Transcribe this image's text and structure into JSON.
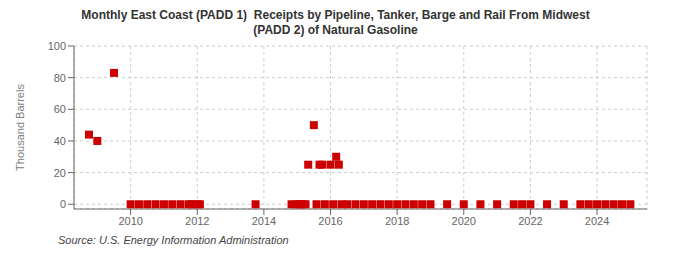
{
  "chart_data": {
    "type": "scatter",
    "title": "Monthly East Coast (PADD 1)  Receipts by Pipeline, Tanker, Barge and Rail From Midwest\n(PADD 2) of Natural Gasoline",
    "ylabel": "Thousand Barrels",
    "annotation": "Source: U.S. Energy Information Administration",
    "x": [
      2008.75,
      2009.0,
      2009.5,
      2010.0,
      2010.25,
      2010.5,
      2010.75,
      2011.0,
      2011.25,
      2011.5,
      2011.75,
      2011.83,
      2012.0,
      2012.08,
      2013.75,
      2014.83,
      2015.0,
      2015.08,
      2015.17,
      2015.25,
      2015.33,
      2015.5,
      2015.58,
      2015.67,
      2015.75,
      2015.83,
      2016.0,
      2016.08,
      2016.17,
      2016.25,
      2016.33,
      2016.5,
      2016.75,
      2017.0,
      2017.25,
      2017.5,
      2017.75,
      2018.0,
      2018.25,
      2018.5,
      2018.75,
      2019.0,
      2019.5,
      2020.0,
      2020.5,
      2021.0,
      2021.5,
      2021.75,
      2022.0,
      2022.5,
      2023.0,
      2023.5,
      2023.75,
      2024.0,
      2024.25,
      2024.5,
      2024.75,
      2025.0
    ],
    "values": [
      44,
      40,
      83,
      0,
      0,
      0,
      0,
      0,
      0,
      0,
      0,
      0,
      0,
      0,
      0,
      0,
      0,
      0,
      0,
      0,
      25,
      50,
      0,
      25,
      25,
      0,
      25,
      0,
      30,
      25,
      0,
      0,
      0,
      0,
      0,
      0,
      0,
      0,
      0,
      0,
      0,
      0,
      0,
      0,
      0,
      0,
      0,
      0,
      0,
      0,
      0,
      0,
      0,
      0,
      0,
      0,
      0,
      0
    ],
    "color": "#cc0000",
    "marker": "square",
    "xlim": [
      2008.3,
      2025.5
    ],
    "xticks": [
      2010,
      2012,
      2014,
      2016,
      2018,
      2020,
      2022,
      2024
    ],
    "ylim": [
      -3,
      100
    ],
    "yticks": [
      0,
      20,
      40,
      60,
      80,
      100
    ],
    "grid": true
  }
}
